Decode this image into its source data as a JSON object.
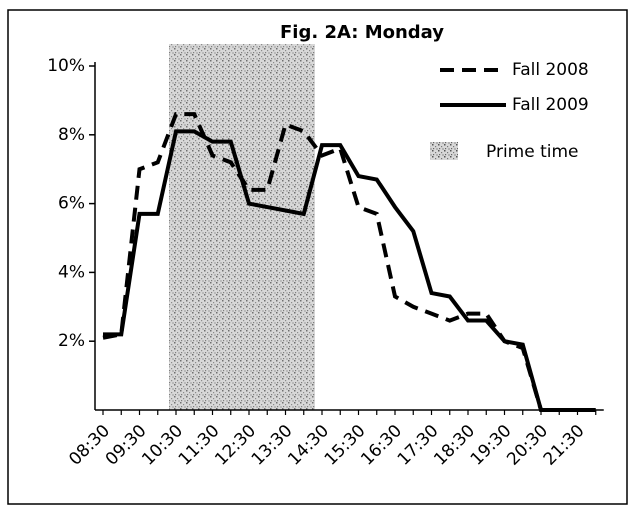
{
  "chart_data": {
    "type": "line",
    "title": "Fig. 2A: Monday",
    "categories": [
      "08:30",
      null,
      "09:30",
      null,
      "10:30",
      null,
      "11:30",
      null,
      "12:30",
      null,
      "13:30",
      null,
      "14:30",
      null,
      "15:30",
      null,
      "16:30",
      null,
      "17:30",
      null,
      "18:30",
      null,
      "19:30",
      null,
      "20:30",
      null,
      "21:30",
      null
    ],
    "series": [
      {
        "name": "Fall 2008",
        "color": "#000000",
        "dashed": true,
        "values": [
          2.1,
          2.2,
          7.0,
          7.2,
          8.6,
          8.6,
          7.4,
          7.2,
          6.4,
          6.4,
          8.3,
          8.1,
          7.4,
          7.6,
          5.9,
          5.7,
          3.3,
          3.0,
          2.8,
          2.6,
          2.8,
          2.8,
          2.0,
          1.8,
          0,
          0,
          0,
          0
        ]
      },
      {
        "name": "Fall 2009",
        "color": "#000000",
        "dashed": false,
        "values": [
          2.2,
          2.2,
          5.7,
          5.7,
          8.1,
          8.1,
          7.8,
          7.8,
          6.0,
          5.9,
          5.8,
          5.7,
          7.7,
          7.7,
          6.8,
          6.7,
          5.9,
          5.2,
          3.4,
          3.3,
          2.6,
          2.6,
          2.0,
          1.9,
          0,
          0,
          0,
          0
        ]
      }
    ],
    "shaded_region": {
      "name": "Prime time",
      "from": "10:30",
      "to": "14:30",
      "color": "#b8b8b8"
    },
    "ylim": [
      0,
      10
    ],
    "yticks": [
      {
        "value": 2,
        "label": "2%"
      },
      {
        "value": 4,
        "label": "4%"
      },
      {
        "value": 6,
        "label": "6%"
      },
      {
        "value": 8,
        "label": "8%"
      },
      {
        "value": 10,
        "label": "10%"
      }
    ],
    "legend": "top-right"
  }
}
